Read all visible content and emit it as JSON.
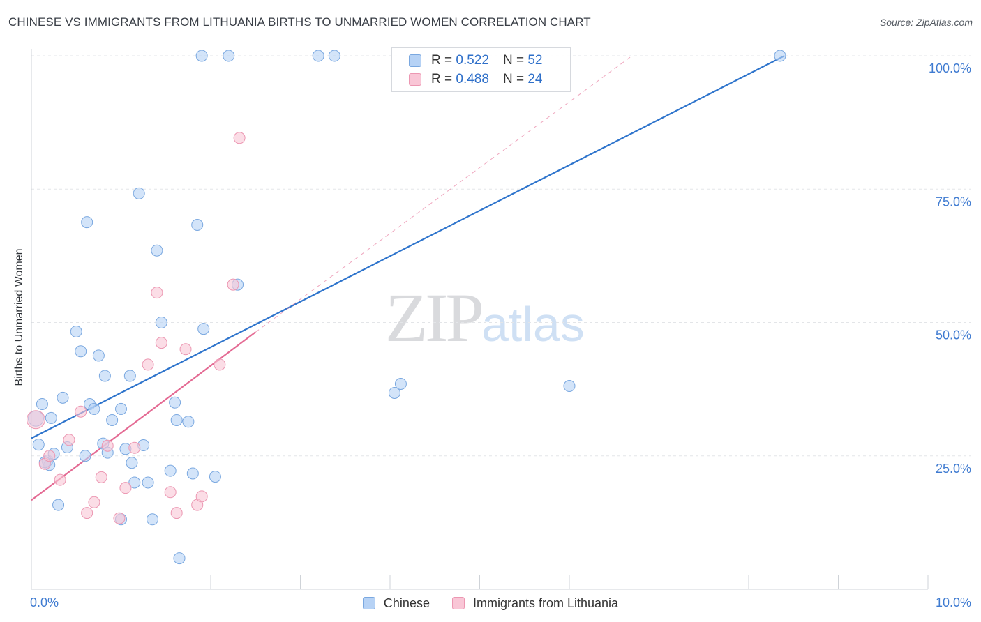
{
  "header": {
    "title": "CHINESE VS IMMIGRANTS FROM LITHUANIA BIRTHS TO UNMARRIED WOMEN CORRELATION CHART",
    "source": "Source: ZipAtlas.com"
  },
  "watermark": {
    "zip": "ZIP",
    "atlas": "atlas"
  },
  "legend": {
    "rows": [
      {
        "r_label": "R =",
        "r_value": "0.522",
        "n_label": "N =",
        "n_value": "52"
      },
      {
        "r_label": "R =",
        "r_value": "0.488",
        "n_label": "N =",
        "n_value": "24"
      }
    ]
  },
  "colors": {
    "blue_fill": "#b6d2f5",
    "blue_stroke": "#7aa8e0",
    "blue_line": "#2e74cc",
    "pink_fill": "#f9c6d6",
    "pink_stroke": "#ec97b2",
    "pink_line": "#e46a93",
    "axis_text": "#3f7bd1",
    "grid": "#e3e5e8"
  },
  "chart_data": {
    "type": "scatter",
    "title": "CHINESE VS IMMIGRANTS FROM LITHUANIA BIRTHS TO UNMARRIED WOMEN CORRELATION CHART",
    "xlabel": "",
    "ylabel": "Births to Unmarried Women",
    "xlim": [
      0,
      10
    ],
    "ylim": [
      0,
      105
    ],
    "x_tick_labels": [
      {
        "value": 0,
        "label": "0.0%"
      },
      {
        "value": 10,
        "label": "10.0%"
      }
    ],
    "x_minor_ticks": [
      1,
      2,
      3,
      4,
      5,
      6,
      7,
      8,
      9,
      10
    ],
    "y_ticks": [
      {
        "value": 25,
        "label": "25.0%"
      },
      {
        "value": 50,
        "label": "50.0%"
      },
      {
        "value": 75,
        "label": "75.0%"
      },
      {
        "value": 100,
        "label": "100.0%"
      }
    ],
    "series": [
      {
        "name": "Chinese",
        "color": "blue",
        "points": [
          [
            0.05,
            32.0
          ],
          [
            0.08,
            27.1
          ],
          [
            0.12,
            34.7
          ],
          [
            0.18,
            24.1
          ],
          [
            0.2,
            23.3
          ],
          [
            0.25,
            25.4
          ],
          [
            0.22,
            32.1
          ],
          [
            0.35,
            35.9
          ],
          [
            0.4,
            26.6
          ],
          [
            0.5,
            48.3
          ],
          [
            0.55,
            44.6
          ],
          [
            0.6,
            25.0
          ],
          [
            0.65,
            34.7
          ],
          [
            0.7,
            33.8
          ],
          [
            0.75,
            43.8
          ],
          [
            0.8,
            27.3
          ],
          [
            0.82,
            40.0
          ],
          [
            0.85,
            25.6
          ],
          [
            0.9,
            31.7
          ],
          [
            1.0,
            13.1
          ],
          [
            1.0,
            33.8
          ],
          [
            1.1,
            40.0
          ],
          [
            1.12,
            23.7
          ],
          [
            1.15,
            20.0
          ],
          [
            1.2,
            74.2
          ],
          [
            1.25,
            27.0
          ],
          [
            1.3,
            20.0
          ],
          [
            1.35,
            13.1
          ],
          [
            1.4,
            63.5
          ],
          [
            1.45,
            50.0
          ],
          [
            1.55,
            22.2
          ],
          [
            1.6,
            35.0
          ],
          [
            1.62,
            31.7
          ],
          [
            1.65,
            5.8
          ],
          [
            1.75,
            31.4
          ],
          [
            1.8,
            21.7
          ],
          [
            1.85,
            68.3
          ],
          [
            1.9,
            100.0
          ],
          [
            1.92,
            48.8
          ],
          [
            2.05,
            21.1
          ],
          [
            2.2,
            100.0
          ],
          [
            2.3,
            57.1
          ],
          [
            3.2,
            100.0
          ],
          [
            3.38,
            100.0
          ],
          [
            4.05,
            36.8
          ],
          [
            4.12,
            38.5
          ],
          [
            6.0,
            38.1
          ],
          [
            8.35,
            100.0
          ],
          [
            0.62,
            68.8
          ],
          [
            0.3,
            15.8
          ],
          [
            1.05,
            26.3
          ],
          [
            0.15,
            23.8
          ]
        ]
      },
      {
        "name": "Immigrants from Lithuania",
        "color": "pink",
        "points": [
          [
            0.05,
            31.8
          ],
          [
            0.15,
            23.5
          ],
          [
            0.2,
            25.0
          ],
          [
            0.32,
            20.5
          ],
          [
            0.42,
            28.0
          ],
          [
            0.55,
            33.3
          ],
          [
            0.62,
            14.3
          ],
          [
            0.7,
            16.3
          ],
          [
            0.78,
            21.0
          ],
          [
            0.85,
            26.9
          ],
          [
            0.98,
            13.3
          ],
          [
            1.05,
            19.0
          ],
          [
            1.15,
            26.5
          ],
          [
            1.3,
            42.1
          ],
          [
            1.4,
            55.6
          ],
          [
            1.45,
            46.2
          ],
          [
            1.55,
            18.2
          ],
          [
            1.62,
            14.3
          ],
          [
            1.72,
            45.0
          ],
          [
            1.85,
            15.8
          ],
          [
            1.9,
            17.4
          ],
          [
            2.1,
            42.1
          ],
          [
            2.25,
            57.1
          ],
          [
            2.32,
            84.6
          ]
        ]
      }
    ],
    "trend_lines": [
      {
        "series": "Chinese",
        "x": [
          0,
          8.4
        ],
        "y": [
          28.3,
          100.0
        ],
        "style": "solid"
      },
      {
        "series": "Immigrants from Lithuania",
        "x": [
          0,
          2.5
        ],
        "y": [
          16.7,
          48.2
        ],
        "style": "solid"
      },
      {
        "series": "Immigrants from Lithuania",
        "x": [
          2.5,
          6.7
        ],
        "y": [
          48.2,
          100.0
        ],
        "style": "dashed"
      }
    ],
    "legend_position": "top-center"
  },
  "bottom_legend": {
    "items": [
      {
        "label": "Chinese"
      },
      {
        "label": "Immigrants from Lithuania"
      }
    ]
  }
}
